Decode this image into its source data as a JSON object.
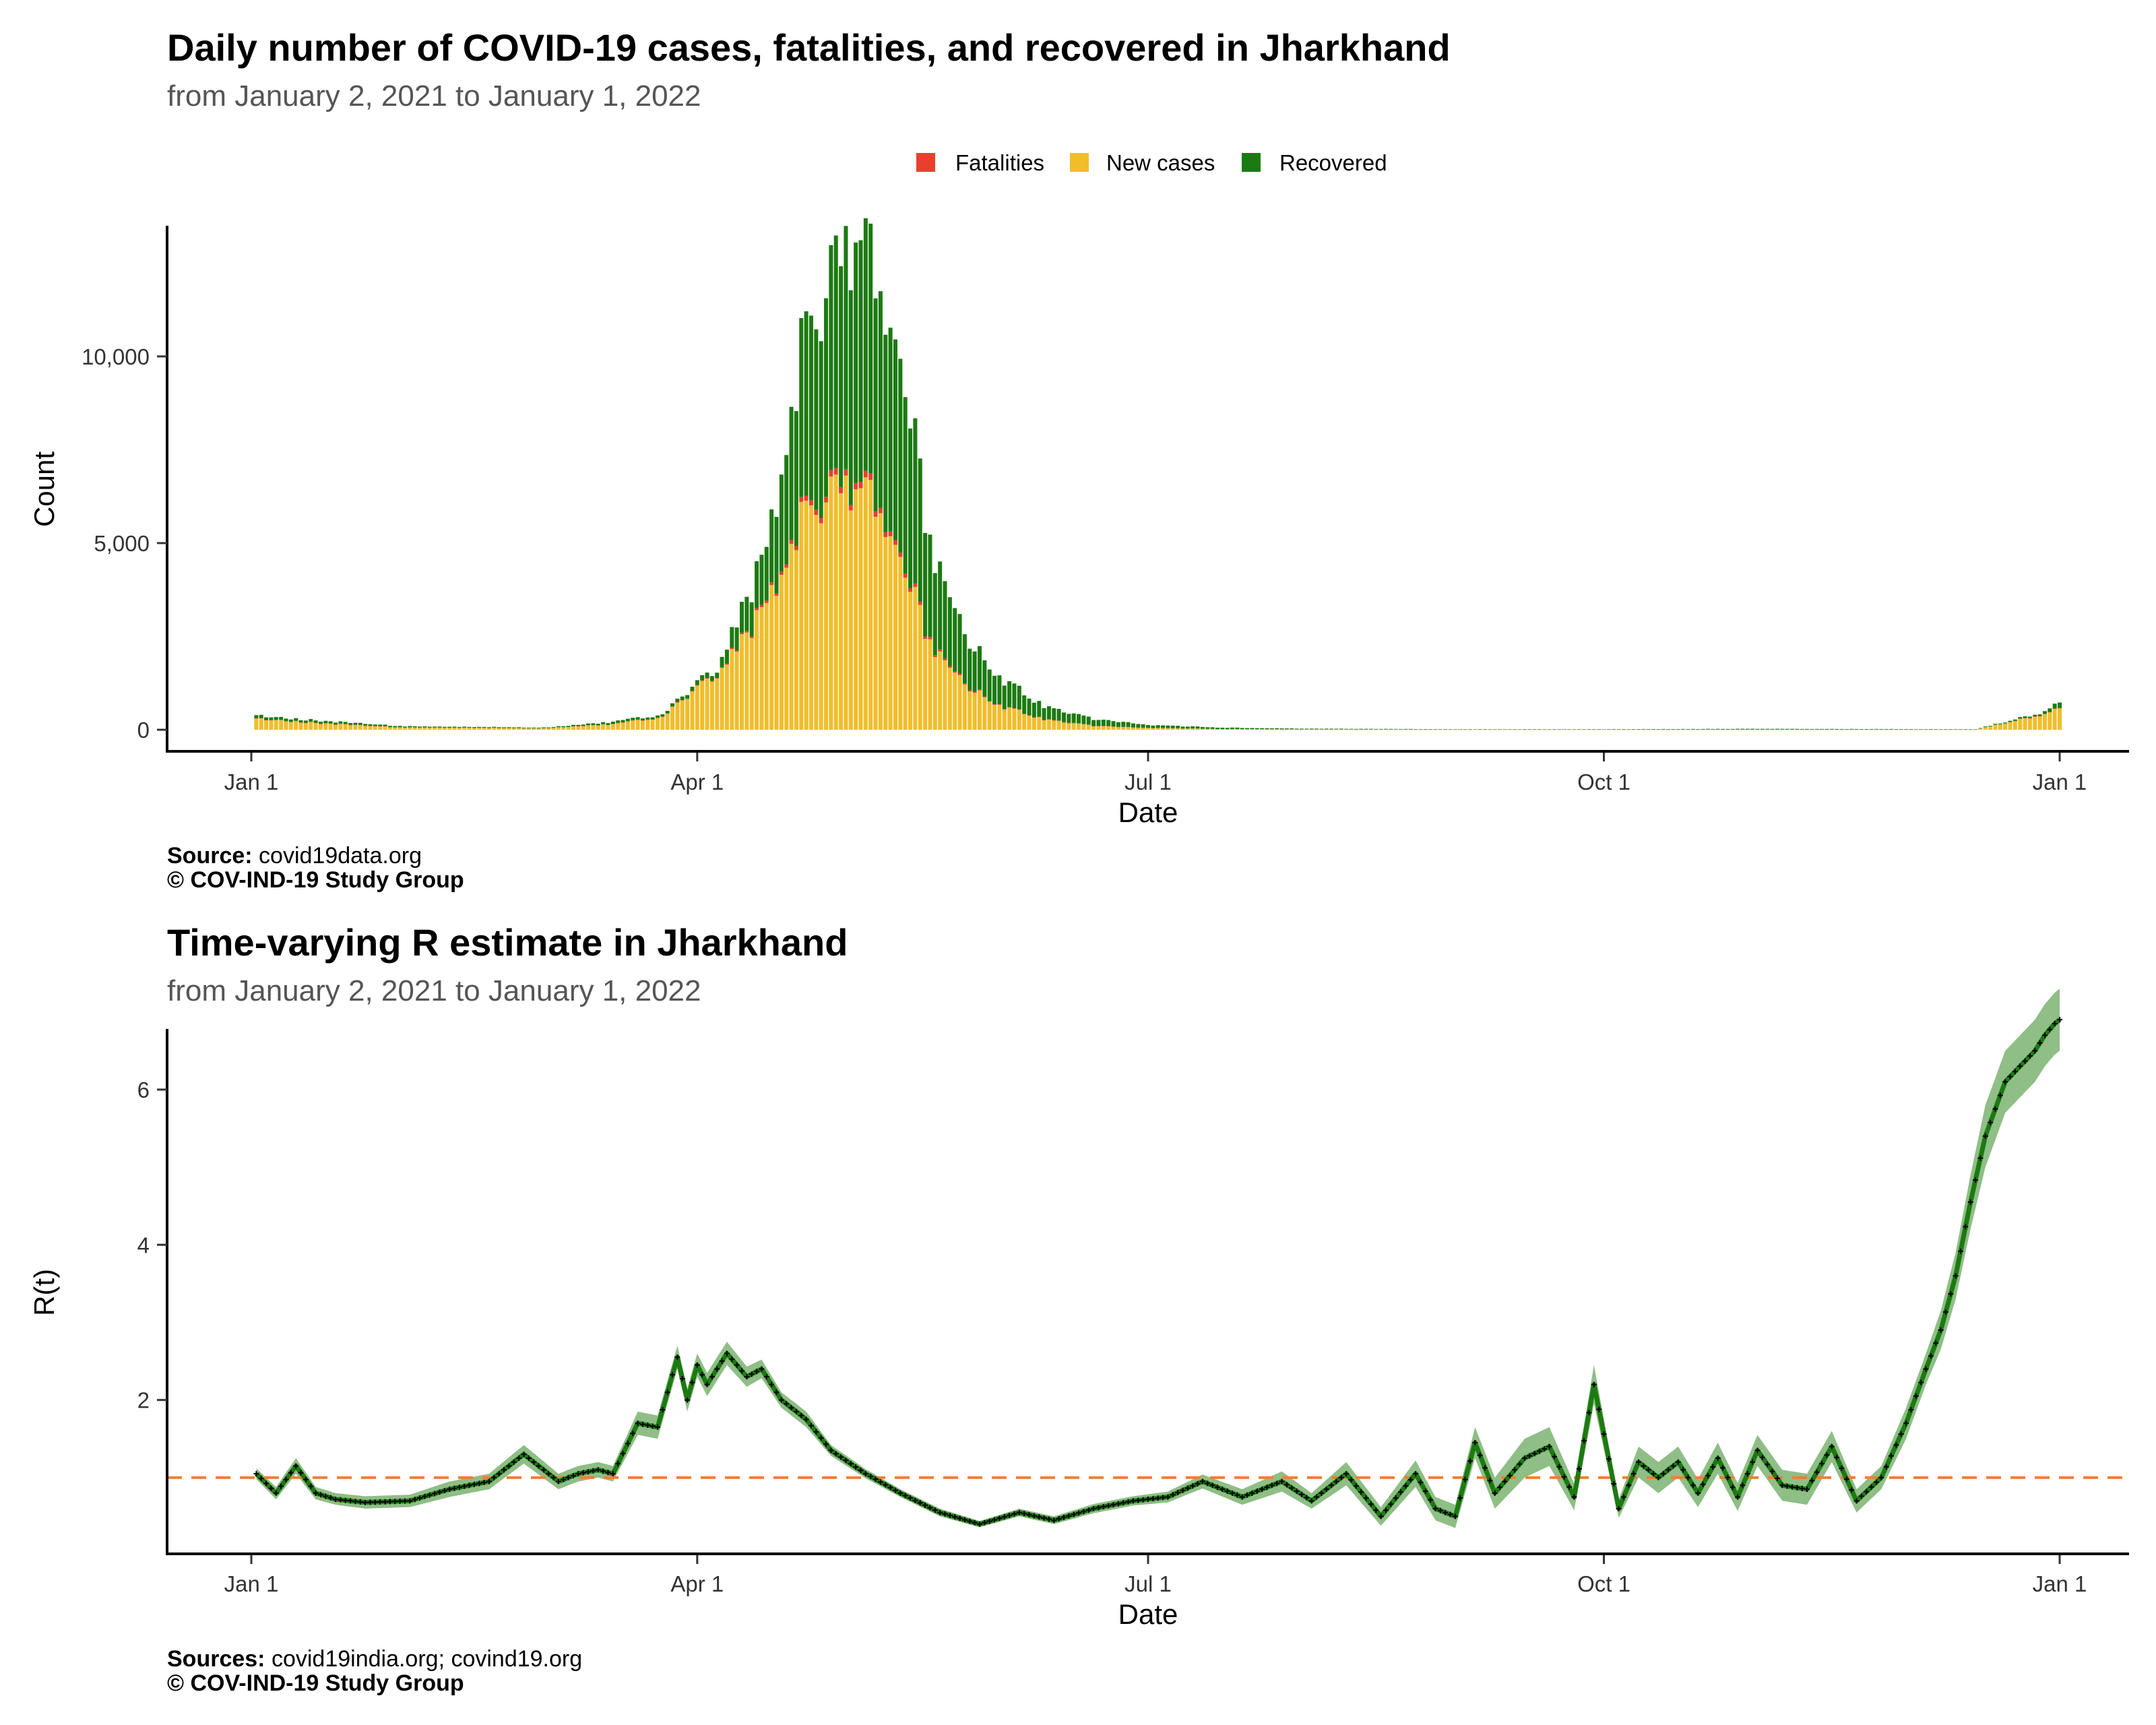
{
  "chart_data": [
    {
      "type": "bar",
      "stacked": true,
      "title": "Daily number of COVID-19 cases, fatalities, and recovered in Jharkhand",
      "subtitle": "from January  2, 2021 to January  1, 2022",
      "xlabel": "Date",
      "ylabel": "Count",
      "x_range": [
        "2021-01-02",
        "2022-01-01"
      ],
      "x_ticks": [
        "Jan  1",
        "Apr  1",
        "Jul  1",
        "Oct  1",
        "Jan  1"
      ],
      "y_ticks": [
        "0",
        "5,000",
        "10,000"
      ],
      "ylim": [
        0,
        13500
      ],
      "legend": {
        "position": "top",
        "entries": [
          "Fatalities",
          "New cases",
          "Recovered"
        ]
      },
      "colors": {
        "Fatalities": "#e8402f",
        "New cases": "#f1bd2c",
        "Recovered": "#1c7a12"
      },
      "series_keyframes": {
        "x": [
          "2021-01-02",
          "2021-01-15",
          "2021-02-01",
          "2021-03-01",
          "2021-03-15",
          "2021-03-25",
          "2021-04-05",
          "2021-04-15",
          "2021-04-22",
          "2021-04-28",
          "2021-05-03",
          "2021-05-08",
          "2021-05-13",
          "2021-05-18",
          "2021-05-25",
          "2021-06-01",
          "2021-06-10",
          "2021-06-20",
          "2021-07-01",
          "2021-07-15",
          "2021-08-01",
          "2021-09-01",
          "2021-10-01",
          "2021-11-01",
          "2021-12-15",
          "2021-12-28",
          "2022-01-01"
        ],
        "New cases": [
          300,
          180,
          60,
          40,
          150,
          350,
          1500,
          3300,
          5600,
          6300,
          6400,
          6000,
          4300,
          2300,
          1200,
          650,
          280,
          110,
          50,
          20,
          10,
          5,
          5,
          5,
          5,
          400,
          600
        ],
        "Fatalities": [
          3,
          2,
          1,
          0,
          1,
          3,
          20,
          60,
          120,
          160,
          170,
          150,
          110,
          60,
          30,
          15,
          6,
          3,
          1,
          0,
          0,
          0,
          0,
          0,
          0,
          2,
          3
        ],
        "Recovered": [
          80,
          60,
          30,
          20,
          60,
          60,
          150,
          1400,
          4400,
          5600,
          6400,
          6000,
          5000,
          2600,
          1300,
          750,
          350,
          180,
          80,
          40,
          20,
          10,
          10,
          20,
          10,
          50,
          150
        ]
      },
      "caption": {
        "source_label": "Source:",
        "source": "covid19data.org",
        "copyright": "© COV-IND-19 Study Group"
      }
    },
    {
      "type": "line",
      "title": "Time-varying R estimate in Jharkhand",
      "subtitle": "from January  2, 2021 to January  1, 2022",
      "xlabel": "Date",
      "ylabel": "R(t)",
      "x_range": [
        "2021-01-02",
        "2022-01-01"
      ],
      "x_ticks": [
        "Jan  1",
        "Apr  1",
        "Jul  1",
        "Oct  1",
        "Jan  1"
      ],
      "y_ticks": [
        "2",
        "4",
        "6"
      ],
      "ylim": [
        0.0,
        6.8
      ],
      "reference_line": {
        "y": 1,
        "style": "dashed",
        "color": "#f08030"
      },
      "colors": {
        "line": "#1c7a12",
        "band": "#6aa85e",
        "markers": "#000000"
      },
      "series": [
        {
          "x": [
            "2021-01-02",
            "2021-01-06",
            "2021-01-10",
            "2021-01-14",
            "2021-01-18",
            "2021-01-24",
            "2021-02-02",
            "2021-02-10",
            "2021-02-18",
            "2021-02-25",
            "2021-03-04",
            "2021-03-08",
            "2021-03-12",
            "2021-03-15",
            "2021-03-20",
            "2021-03-24",
            "2021-03-28",
            "2021-03-30",
            "2021-04-01",
            "2021-04-03",
            "2021-04-07",
            "2021-04-11",
            "2021-04-14",
            "2021-04-18",
            "2021-04-23",
            "2021-04-28",
            "2021-05-05",
            "2021-05-12",
            "2021-05-20",
            "2021-05-28",
            "2021-06-05",
            "2021-06-12",
            "2021-06-20",
            "2021-06-28",
            "2021-07-05",
            "2021-07-12",
            "2021-07-20",
            "2021-07-28",
            "2021-08-03",
            "2021-08-10",
            "2021-08-17",
            "2021-08-24",
            "2021-08-28",
            "2021-09-01",
            "2021-09-05",
            "2021-09-09",
            "2021-09-15",
            "2021-09-20",
            "2021-09-25",
            "2021-09-29",
            "2021-10-04",
            "2021-10-08",
            "2021-10-12",
            "2021-10-16",
            "2021-10-20",
            "2021-10-24",
            "2021-10-28",
            "2021-11-01",
            "2021-11-06",
            "2021-11-11",
            "2021-11-16",
            "2021-11-21",
            "2021-11-26",
            "2021-12-01",
            "2021-12-05",
            "2021-12-08",
            "2021-12-11",
            "2021-12-14",
            "2021-12-17",
            "2021-12-21",
            "2021-12-24",
            "2021-12-27",
            "2021-12-29",
            "2021-12-31",
            "2022-01-01"
          ],
          "R": [
            1.05,
            0.8,
            1.15,
            0.8,
            0.72,
            0.68,
            0.7,
            0.85,
            0.95,
            1.3,
            0.95,
            1.05,
            1.1,
            1.05,
            1.7,
            1.65,
            2.55,
            2.0,
            2.45,
            2.2,
            2.6,
            2.3,
            2.4,
            2.0,
            1.75,
            1.35,
            1.05,
            0.8,
            0.55,
            0.4,
            0.55,
            0.45,
            0.6,
            0.7,
            0.75,
            0.95,
            0.75,
            0.95,
            0.7,
            1.05,
            0.5,
            1.05,
            0.6,
            0.5,
            1.45,
            0.8,
            1.25,
            1.4,
            0.75,
            2.2,
            0.6,
            1.2,
            1.0,
            1.2,
            0.8,
            1.25,
            0.75,
            1.35,
            0.9,
            0.85,
            1.4,
            0.7,
            1.0,
            1.7,
            2.4,
            2.9,
            3.6,
            4.55,
            5.4,
            6.1,
            6.3,
            6.5,
            6.7,
            6.85,
            6.9
          ],
          "lower": [
            0.98,
            0.72,
            1.05,
            0.72,
            0.65,
            0.6,
            0.62,
            0.75,
            0.85,
            1.18,
            0.85,
            0.95,
            1.0,
            0.95,
            1.55,
            1.5,
            2.4,
            1.85,
            2.3,
            2.05,
            2.45,
            2.17,
            2.28,
            1.9,
            1.65,
            1.28,
            0.99,
            0.75,
            0.5,
            0.36,
            0.5,
            0.4,
            0.54,
            0.64,
            0.68,
            0.86,
            0.65,
            0.82,
            0.6,
            0.9,
            0.38,
            0.88,
            0.45,
            0.35,
            1.25,
            0.6,
            1.0,
            1.15,
            0.58,
            1.95,
            0.48,
            1.0,
            0.8,
            1.0,
            0.62,
            1.05,
            0.57,
            1.15,
            0.7,
            0.65,
            1.2,
            0.55,
            0.85,
            1.5,
            2.2,
            2.65,
            3.3,
            4.2,
            5.0,
            5.7,
            5.9,
            6.1,
            6.3,
            6.45,
            6.5
          ],
          "upper": [
            1.12,
            0.88,
            1.25,
            0.88,
            0.8,
            0.76,
            0.78,
            0.95,
            1.05,
            1.42,
            1.05,
            1.15,
            1.2,
            1.15,
            1.85,
            1.8,
            2.7,
            2.15,
            2.6,
            2.35,
            2.75,
            2.43,
            2.52,
            2.1,
            1.85,
            1.42,
            1.11,
            0.85,
            0.6,
            0.44,
            0.6,
            0.5,
            0.66,
            0.76,
            0.82,
            1.04,
            0.85,
            1.08,
            0.8,
            1.2,
            0.62,
            1.22,
            0.75,
            0.65,
            1.65,
            1.0,
            1.5,
            1.65,
            0.92,
            2.45,
            0.72,
            1.4,
            1.2,
            1.4,
            0.98,
            1.45,
            0.93,
            1.55,
            1.1,
            1.05,
            1.6,
            0.85,
            1.15,
            1.9,
            2.6,
            3.15,
            3.9,
            4.9,
            5.8,
            6.5,
            6.7,
            6.9,
            7.1,
            7.25,
            7.3
          ]
        }
      ],
      "caption": {
        "source_label": "Sources:",
        "source": "covid19india.org; covind19.org",
        "copyright": "© COV-IND-19 Study Group"
      }
    }
  ]
}
